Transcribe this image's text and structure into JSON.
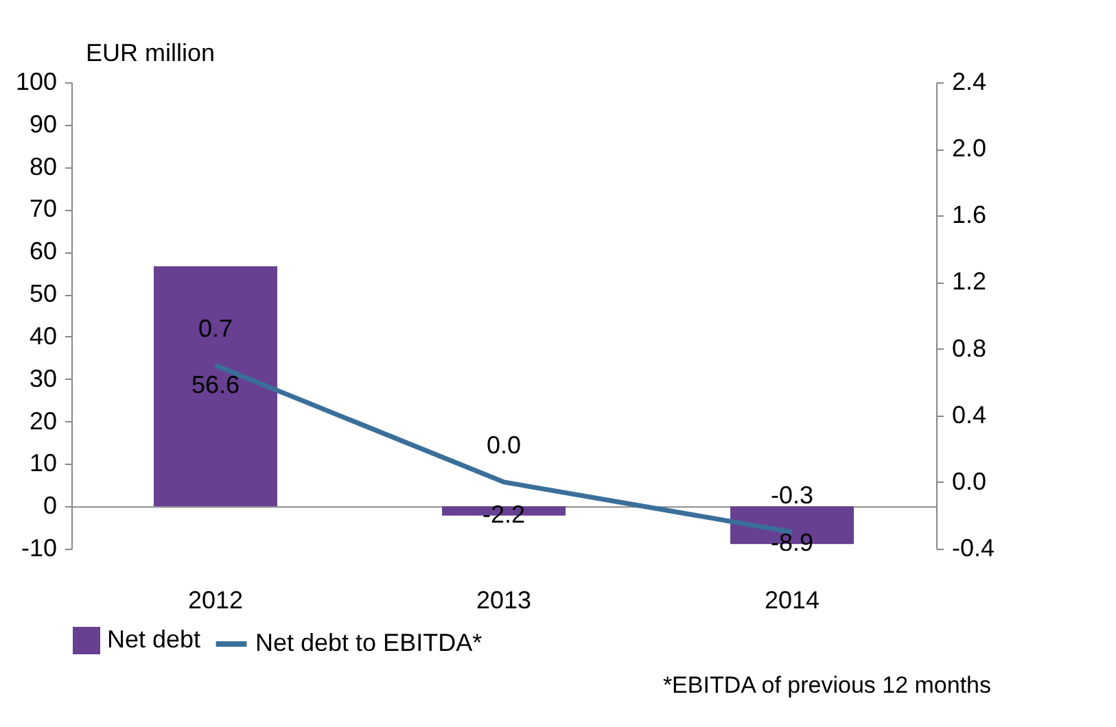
{
  "chart_data": {
    "type": "bar",
    "ylabel": "EUR million",
    "categories": [
      "2012",
      "2013",
      "2014"
    ],
    "series": [
      {
        "name": "Net debt",
        "color": "#674091",
        "values": [
          56.6,
          -2.2,
          -8.9
        ],
        "value_labels": [
          "56.6",
          "-2.2",
          "-8.9"
        ]
      },
      {
        "name": "Net debt to EBITDA*",
        "type": "line",
        "axis": "y2",
        "color": "#3a6f9a",
        "values": [
          0.7,
          0.0,
          -0.3
        ],
        "value_labels": [
          "0.7",
          "0.0",
          "-0.3"
        ]
      }
    ],
    "ylim": [
      -10,
      100
    ],
    "yticks": [
      -10,
      0,
      10,
      20,
      30,
      40,
      50,
      60,
      70,
      80,
      90,
      100
    ],
    "y2lim": [
      -0.4,
      2.4
    ],
    "y2ticks": [
      -0.4,
      {
        "value": 0.0,
        "label": "0.0"
      },
      0.4,
      0.8,
      1.2,
      1.6,
      {
        "value": 2.0,
        "label": "2.0"
      },
      2.4
    ],
    "legend": "bottom",
    "annotations": [
      "*EBITDA of previous 12 months"
    ]
  }
}
